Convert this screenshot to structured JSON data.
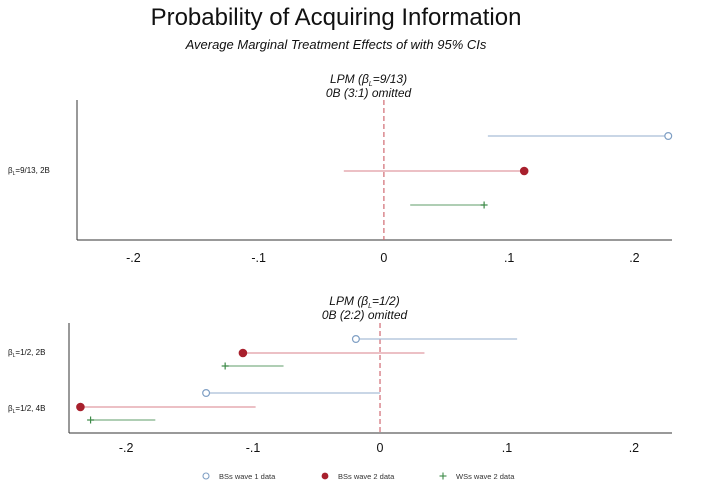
{
  "chart_data": {
    "type": "scatter",
    "title": "Probability of Acquiring Information",
    "subtitle": "Average Marginal Treatment Effects of with 95% CIs",
    "legend_position": "bottom",
    "colors": {
      "bs_wave1": "#7f9fc4",
      "bs_wave2": "#a8202d",
      "ws_wave2": "#3d8a48",
      "bs_wave1_ci": "#a9bdd6",
      "bs_wave2_ci": "#e09aa2",
      "ws_wave2_ci": "#7fb187",
      "zero_line": "#d06a72"
    },
    "legend": [
      {
        "key": "bs_wave1",
        "label": "BSs wave 1 data",
        "marker": "circle-open"
      },
      {
        "key": "bs_wave2",
        "label": "BSs wave 2 data",
        "marker": "circle-filled"
      },
      {
        "key": "ws_wave2",
        "label": "WSs wave 2 data",
        "marker": "plus"
      }
    ],
    "panels": [
      {
        "title_line1": "LPM (β",
        "title_sub": "L",
        "title_line1_end": "=9/13)",
        "title_line2": "0B (3:1) omitted",
        "xlim": [
          -0.245,
          0.23
        ],
        "xticks": [
          -0.2,
          -0.1,
          0,
          0.1,
          0.2
        ],
        "xtick_labels": [
          "-.2",
          "-.1",
          "0",
          ".1",
          ".2"
        ],
        "categories": [
          {
            "label": "β",
            "label_sub": "L",
            "label_end": "=9/13, 2B",
            "series": [
              {
                "key": "bs_wave1",
                "estimate": 0.227,
                "ci": [
                  0.083,
                  0.227
                ]
              },
              {
                "key": "bs_wave2",
                "estimate": 0.112,
                "ci": [
                  -0.032,
                  0.112
                ]
              },
              {
                "key": "ws_wave2",
                "estimate": 0.08,
                "ci": [
                  0.021,
                  0.08
                ]
              }
            ]
          }
        ]
      },
      {
        "title_line1": "LPM (β",
        "title_sub": "L",
        "title_line1_end": "=1/2)",
        "title_line2": "0B (2:2) omitted",
        "xlim": [
          -0.245,
          0.23
        ],
        "xticks": [
          -0.2,
          -0.1,
          0,
          0.1,
          0.2
        ],
        "xtick_labels": [
          "-.2",
          "-.1",
          "0",
          ".1",
          ".2"
        ],
        "categories": [
          {
            "label": "β",
            "label_sub": "L",
            "label_end": "=1/2, 2B",
            "series": [
              {
                "key": "bs_wave1",
                "estimate": -0.019,
                "ci": [
                  -0.019,
                  0.108
                ]
              },
              {
                "key": "bs_wave2",
                "estimate": -0.108,
                "ci": [
                  -0.108,
                  0.035
                ]
              },
              {
                "key": "ws_wave2",
                "estimate": -0.122,
                "ci": [
                  -0.122,
                  -0.076
                ]
              }
            ]
          },
          {
            "label": "β",
            "label_sub": "L",
            "label_end": "=1/2, 4B",
            "series": [
              {
                "key": "bs_wave1",
                "estimate": -0.137,
                "ci": [
                  -0.137,
                  0.0
                ]
              },
              {
                "key": "bs_wave2",
                "estimate": -0.236,
                "ci": [
                  -0.236,
                  -0.098
                ]
              },
              {
                "key": "ws_wave2",
                "estimate": -0.228,
                "ci": [
                  -0.228,
                  -0.177
                ]
              }
            ]
          }
        ]
      }
    ]
  }
}
